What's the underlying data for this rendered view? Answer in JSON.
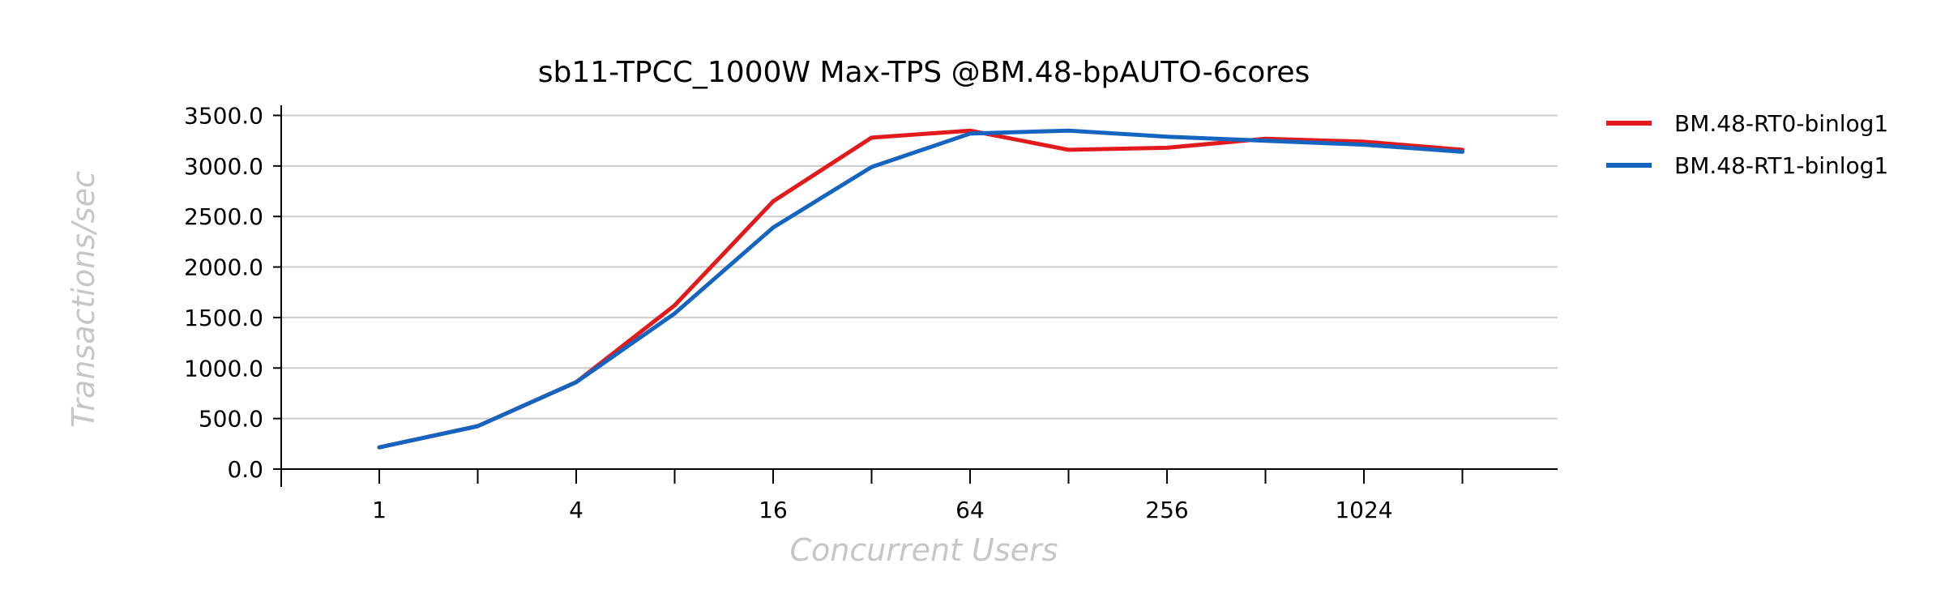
{
  "chart_data": {
    "type": "line",
    "title": "sb11-TPCC_1000W Max-TPS @BM.48-bpAUTO-6cores",
    "xlabel": "Concurrent Users",
    "ylabel": "Transactions/sec",
    "x_scale": "log2",
    "x": [
      1,
      2,
      4,
      8,
      16,
      32,
      64,
      128,
      256,
      512,
      1024,
      2048
    ],
    "x_tick_labels": [
      {
        "value": 1,
        "label": "1"
      },
      {
        "value": 4,
        "label": "4"
      },
      {
        "value": 16,
        "label": "16"
      },
      {
        "value": 64,
        "label": "64"
      },
      {
        "value": 256,
        "label": "256"
      },
      {
        "value": 1024,
        "label": "1024"
      }
    ],
    "y_ticks": [
      {
        "value": 0,
        "label": "0.0"
      },
      {
        "value": 500,
        "label": "500.0"
      },
      {
        "value": 1000,
        "label": "1000.0"
      },
      {
        "value": 1500,
        "label": "1500.0"
      },
      {
        "value": 2000,
        "label": "2000.0"
      },
      {
        "value": 2500,
        "label": "2500.0"
      },
      {
        "value": 3000,
        "label": "3000.0"
      },
      {
        "value": 3500,
        "label": "3500.0"
      }
    ],
    "ylim": [
      0,
      3600
    ],
    "grid": true,
    "legend_position": "right",
    "series": [
      {
        "name": "BM.48-RT0-binlog1",
        "color": "#e31a1c",
        "values": [
          215,
          425,
          860,
          1620,
          2650,
          3280,
          3350,
          3160,
          3180,
          3270,
          3240,
          3160
        ]
      },
      {
        "name": "BM.48-RT1-binlog1",
        "color": "#1565c0",
        "values": [
          215,
          425,
          860,
          1540,
          2390,
          2990,
          3320,
          3350,
          3290,
          3250,
          3210,
          3140
        ]
      }
    ]
  }
}
